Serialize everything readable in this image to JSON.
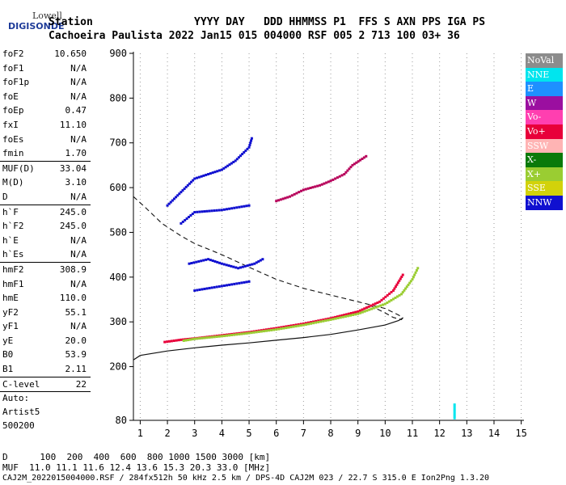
{
  "logo": {
    "line1": "Lowell",
    "line2": "DIGISONDE"
  },
  "header": {
    "row1": "Station                YYYY DAY   DDD HHMMSS P1  FFS S AXN PPS IGA PS",
    "row2": "Cachoeira Paulista 2022 Jan15 015 004000 RSF 005 2 713 100 03+ 36"
  },
  "params": [
    [
      {
        "label": "foF2",
        "value": "10.650"
      },
      {
        "label": "foF1",
        "value": "N/A"
      },
      {
        "label": "foF1p",
        "value": "N/A"
      },
      {
        "label": "foE",
        "value": "N/A"
      },
      {
        "label": "foEp",
        "value": "0.47"
      },
      {
        "label": "fxI",
        "value": "11.10"
      },
      {
        "label": "foEs",
        "value": "N/A"
      },
      {
        "label": "fmin",
        "value": "1.70"
      }
    ],
    [
      {
        "label": "MUF(D)",
        "value": "33.04"
      },
      {
        "label": "M(D)",
        "value": "3.10"
      },
      {
        "label": "D",
        "value": "N/A"
      }
    ],
    [
      {
        "label": "h`F",
        "value": "245.0"
      },
      {
        "label": "h`F2",
        "value": "245.0"
      },
      {
        "label": "h`E",
        "value": "N/A"
      },
      {
        "label": "h`Es",
        "value": "N/A"
      }
    ],
    [
      {
        "label": "hmF2",
        "value": "308.9"
      },
      {
        "label": "hmF1",
        "value": "N/A"
      },
      {
        "label": "hmE",
        "value": "110.0"
      },
      {
        "label": "yF2",
        "value": "55.1"
      },
      {
        "label": "yF1",
        "value": "N/A"
      },
      {
        "label": "yE",
        "value": "20.0"
      },
      {
        "label": "B0",
        "value": "53.9"
      },
      {
        "label": "B1",
        "value": "2.11"
      }
    ],
    [
      {
        "label": "C-level",
        "value": "22"
      }
    ]
  ],
  "autoscaling": [
    "Auto:",
    "Artist5",
    "500200"
  ],
  "legend": [
    {
      "label": "NoVal",
      "color": "#8c8c8c"
    },
    {
      "label": "NNE",
      "color": "#00e5ee"
    },
    {
      "label": "E",
      "color": "#1e90ff"
    },
    {
      "label": "W",
      "color": "#9b0fa0"
    },
    {
      "label": "Vo-",
      "color": "#ff3fb0"
    },
    {
      "label": "Vo+",
      "color": "#e8003a"
    },
    {
      "label": "SSW",
      "color": "#ffb4b4"
    },
    {
      "label": "X-",
      "color": "#0a7a0a"
    },
    {
      "label": "X+",
      "color": "#9acd32"
    },
    {
      "label": "SSE",
      "color": "#d2d20a"
    },
    {
      "label": "NNW",
      "color": "#1010d0"
    }
  ],
  "footer": {
    "d_row": "D      100  200  400  600  800 1000 1500 3000 [km]",
    "muf_row": "MUF  11.0 11.1 11.6 12.4 13.6 15.3 20.3 33.0 [MHz]",
    "info_row": "CAJ2M_2022015004000.RSF / 284fx512h 50 kHz 2.5 km / DPS-4D CAJ2M 023 / 22.7 S 315.0 E Ion2Png 1.3.20"
  },
  "chart_data": {
    "type": "scatter",
    "xlim": [
      0.75,
      15.1
    ],
    "ylim": [
      80,
      900
    ],
    "xticks": [
      1,
      2,
      3,
      4,
      5,
      6,
      7,
      8,
      9,
      10,
      11,
      12,
      13,
      14,
      15
    ],
    "yticks": [
      80,
      200,
      300,
      400,
      500,
      600,
      700,
      800,
      900
    ],
    "grid": "dotted vertical",
    "profile_curve": [
      [
        0.75,
        215
      ],
      [
        1,
        225
      ],
      [
        2,
        235
      ],
      [
        3,
        242
      ],
      [
        4,
        248
      ],
      [
        5,
        253
      ],
      [
        6,
        259
      ],
      [
        7,
        265
      ],
      [
        8,
        272
      ],
      [
        9,
        282
      ],
      [
        10,
        293
      ],
      [
        10.5,
        303
      ],
      [
        10.65,
        309
      ]
    ],
    "dashed_curve": [
      [
        0.75,
        580
      ],
      [
        1.2,
        555
      ],
      [
        1.8,
        520
      ],
      [
        2.5,
        492
      ],
      [
        3,
        475
      ],
      [
        4,
        450
      ],
      [
        5,
        422
      ],
      [
        6,
        395
      ],
      [
        7,
        375
      ],
      [
        8,
        360
      ],
      [
        9,
        345
      ],
      [
        10,
        330
      ],
      [
        10.5,
        315
      ],
      [
        10.65,
        309
      ],
      [
        10.6,
        305
      ],
      [
        10.3,
        310
      ],
      [
        10,
        320
      ],
      [
        9.5,
        335
      ]
    ],
    "traces": [
      {
        "name": "O-trace F2",
        "color": "#e8003a",
        "points": [
          [
            1.9,
            255
          ],
          [
            2.5,
            260
          ],
          [
            3,
            263
          ],
          [
            4,
            270
          ],
          [
            5,
            277
          ],
          [
            6,
            286
          ],
          [
            7,
            296
          ],
          [
            8,
            308
          ],
          [
            9,
            323
          ],
          [
            9.8,
            345
          ],
          [
            10.3,
            370
          ],
          [
            10.65,
            405
          ]
        ]
      },
      {
        "name": "X-trace F2",
        "color": "#9acd32",
        "points": [
          [
            2.6,
            258
          ],
          [
            3,
            262
          ],
          [
            4,
            268
          ],
          [
            5,
            275
          ],
          [
            6,
            283
          ],
          [
            7,
            293
          ],
          [
            8,
            305
          ],
          [
            9,
            318
          ],
          [
            10,
            340
          ],
          [
            10.6,
            362
          ],
          [
            11.0,
            395
          ],
          [
            11.2,
            420
          ]
        ]
      },
      {
        "name": "spread F",
        "color": "#1010d0",
        "points": [
          [
            2,
            560
          ],
          [
            2.5,
            590
          ],
          [
            3,
            620
          ],
          [
            4,
            640
          ],
          [
            4.5,
            660
          ],
          [
            5,
            690
          ],
          [
            5.1,
            710
          ],
          [
            2.8,
            430
          ],
          [
            3.5,
            440
          ],
          [
            4,
            430
          ],
          [
            4.6,
            420
          ],
          [
            5.2,
            430
          ],
          [
            5.5,
            440
          ],
          [
            3,
            370
          ],
          [
            4,
            380
          ],
          [
            5,
            390
          ],
          [
            2.5,
            520
          ],
          [
            3,
            545
          ],
          [
            4,
            550
          ],
          [
            5,
            560
          ]
        ]
      },
      {
        "name": "oblique",
        "color": "#b7005a",
        "points": [
          [
            6,
            570
          ],
          [
            6.5,
            580
          ],
          [
            7,
            595
          ],
          [
            7.6,
            605
          ],
          [
            8,
            615
          ],
          [
            8.5,
            630
          ],
          [
            8.8,
            650
          ],
          [
            9.3,
            670
          ]
        ]
      },
      {
        "name": "marker",
        "color": "#00e5ee",
        "points": [
          [
            12.55,
            85
          ],
          [
            12.55,
            95
          ],
          [
            12.55,
            105
          ],
          [
            12.55,
            115
          ]
        ]
      }
    ]
  }
}
